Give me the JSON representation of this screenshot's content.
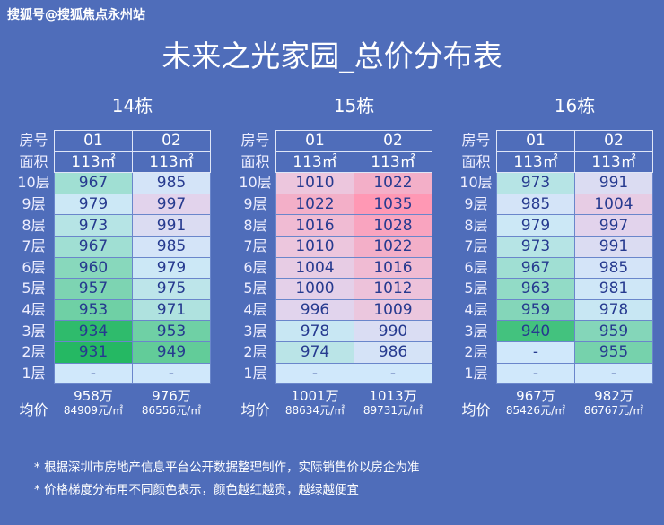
{
  "watermark": "搜狐号@搜狐焦点永州站",
  "title": "未来之光家园_总价分布表",
  "labels": {
    "room": "房号",
    "area": "面积",
    "avg": "均价"
  },
  "color_scale": {
    "stops": [
      [
        931,
        "#25b863"
      ],
      [
        953,
        "#6fd0a5"
      ],
      [
        967,
        "#a0dfd3"
      ],
      [
        979,
        "#cce8f6"
      ],
      [
        985,
        "#d4e4f8"
      ],
      [
        997,
        "#e2d3ec"
      ],
      [
        1010,
        "#ecc6dd"
      ],
      [
        1022,
        "#f3afc8"
      ],
      [
        1035,
        "#ff98b4"
      ]
    ],
    "empty": "#d0e8fb"
  },
  "floors": [
    "10层",
    "9层",
    "8层",
    "7层",
    "6层",
    "5层",
    "4层",
    "3层",
    "2层",
    "1层"
  ],
  "buildings": [
    {
      "name": "14栋",
      "units": [
        {
          "no": "01",
          "area": "113㎡",
          "prices": [
            "967",
            "979",
            "973",
            "967",
            "960",
            "957",
            "953",
            "934",
            "931",
            "-"
          ],
          "avg_total": "958万",
          "avg_unit": "84909元/㎡"
        },
        {
          "no": "02",
          "area": "113㎡",
          "prices": [
            "985",
            "997",
            "991",
            "985",
            "979",
            "975",
            "971",
            "953",
            "949",
            "-"
          ],
          "avg_total": "976万",
          "avg_unit": "86556元/㎡"
        }
      ]
    },
    {
      "name": "15栋",
      "units": [
        {
          "no": "01",
          "area": "113㎡",
          "prices": [
            "1010",
            "1022",
            "1016",
            "1010",
            "1004",
            "1000",
            "996",
            "978",
            "974",
            "-"
          ],
          "avg_total": "1001万",
          "avg_unit": "88634元/㎡"
        },
        {
          "no": "02",
          "area": "113㎡",
          "prices": [
            "1022",
            "1035",
            "1028",
            "1022",
            "1016",
            "1012",
            "1009",
            "990",
            "986",
            "-"
          ],
          "avg_total": "1013万",
          "avg_unit": "89731元/㎡"
        }
      ]
    },
    {
      "name": "16栋",
      "units": [
        {
          "no": "01",
          "area": "113㎡",
          "prices": [
            "973",
            "985",
            "979",
            "973",
            "967",
            "963",
            "959",
            "940",
            "-",
            "-"
          ],
          "avg_total": "967万",
          "avg_unit": "85426元/㎡"
        },
        {
          "no": "02",
          "area": "113㎡",
          "prices": [
            "991",
            "1004",
            "997",
            "991",
            "985",
            "981",
            "978",
            "959",
            "955",
            "-"
          ],
          "avg_total": "982万",
          "avg_unit": "86767元/㎡"
        }
      ]
    }
  ],
  "notes": [
    "* 根据深圳市房地产信息平台公开数据整理制作，实际销售价以房企为准",
    "* 价格梯度分布用不同颜色表示，颜色越红越贵，越绿越便宜"
  ]
}
